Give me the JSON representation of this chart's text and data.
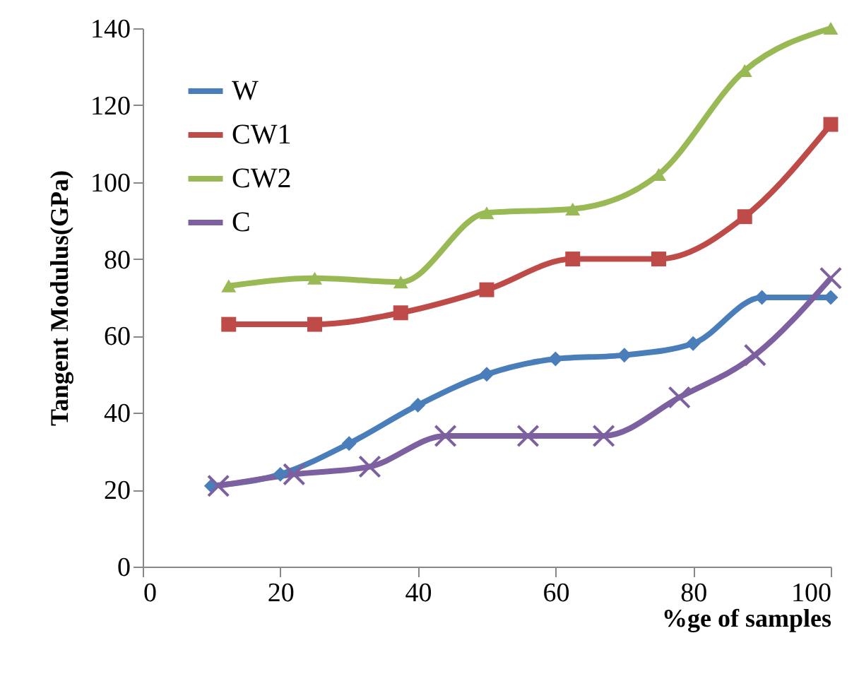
{
  "chart_data": {
    "type": "line",
    "xlabel": "%ge of samples",
    "ylabel": "Tangent Modulus(GPa)",
    "xlim": [
      0,
      100
    ],
    "xticks": [
      0,
      20,
      40,
      60,
      80,
      100
    ],
    "ylim": [
      0,
      140
    ],
    "yticks": [
      0,
      20,
      40,
      60,
      80,
      100,
      120,
      140
    ],
    "grid": false,
    "legend": "top left",
    "series": [
      {
        "name": "W",
        "color": "#4a7ebb",
        "marker": "diamond",
        "x": [
          10,
          20,
          30,
          40,
          50,
          60,
          70,
          80,
          90,
          100
        ],
        "values": [
          21,
          24,
          32,
          42,
          50,
          54,
          55,
          58,
          70,
          70
        ]
      },
      {
        "name": "CW1",
        "color": "#be4b48",
        "marker": "square",
        "x": [
          12.5,
          25,
          37.5,
          50,
          62.5,
          75,
          87.5,
          100
        ],
        "values": [
          63,
          63,
          66,
          72,
          80,
          80,
          91,
          115
        ]
      },
      {
        "name": "CW2",
        "color": "#98b954",
        "marker": "triangle",
        "x": [
          12.5,
          25,
          37.5,
          50,
          62.5,
          75,
          87.5,
          100
        ],
        "values": [
          73,
          75,
          74,
          92,
          93,
          102,
          129,
          140
        ]
      },
      {
        "name": "C",
        "color": "#7d60a0",
        "marker": "cross",
        "x": [
          11,
          22,
          33,
          44,
          56,
          67,
          78,
          89,
          100
        ],
        "values": [
          21,
          24,
          26,
          34,
          34,
          34,
          44,
          55,
          75
        ]
      }
    ]
  }
}
